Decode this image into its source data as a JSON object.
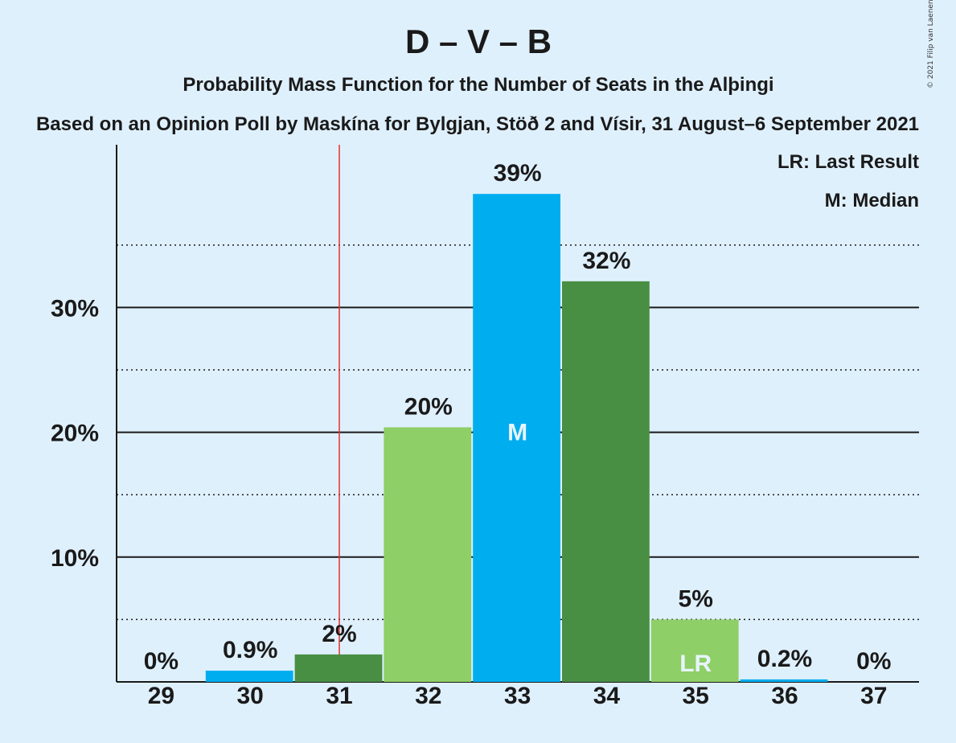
{
  "colors": {
    "background": "#dff0fd",
    "blue": "#00aeef",
    "dark_green": "#488f43",
    "light_green": "#8ecf67",
    "last_result_line": "#e8302f",
    "text": "#1a1a1a",
    "bar_text": "#e8f4fc"
  },
  "chart_data": {
    "type": "bar",
    "title": "D – V – B",
    "subtitle": "Probability Mass Function for the Number of Seats in the Alþingi",
    "subtitle2": "Based on an Opinion Poll by Maskína for Bylgjan, Stöð 2 and Vísir, 31 August–6 September 2021",
    "copyright": "© 2021 Filip van Laenen",
    "categories": [
      "29",
      "30",
      "31",
      "32",
      "33",
      "34",
      "35",
      "36",
      "37"
    ],
    "values": [
      0,
      0.9,
      2.2,
      20.4,
      39.1,
      32.1,
      5.0,
      0.2,
      0
    ],
    "value_labels": [
      "0%",
      "0.9%",
      "2%",
      "20%",
      "39%",
      "32%",
      "5%",
      "0.2%",
      "0%"
    ],
    "bar_colors": [
      "#00aeef",
      "#00aeef",
      "#488f43",
      "#8ecf67",
      "#00aeef",
      "#488f43",
      "#8ecf67",
      "#00aeef",
      "#00aeef"
    ],
    "in_bar_labels": [
      "",
      "",
      "",
      "",
      "M",
      "",
      "LR",
      "",
      ""
    ],
    "last_result_seats": 31.5,
    "ylim": [
      0,
      43
    ],
    "yticks": [
      10,
      20,
      30
    ],
    "ytick_labels": [
      "10%",
      "20%",
      "30%"
    ],
    "minor_gridlines": [
      5,
      15,
      25,
      35
    ],
    "legend": [
      "LR: Last Result",
      "M: Median"
    ],
    "legend_position": "top-right"
  }
}
